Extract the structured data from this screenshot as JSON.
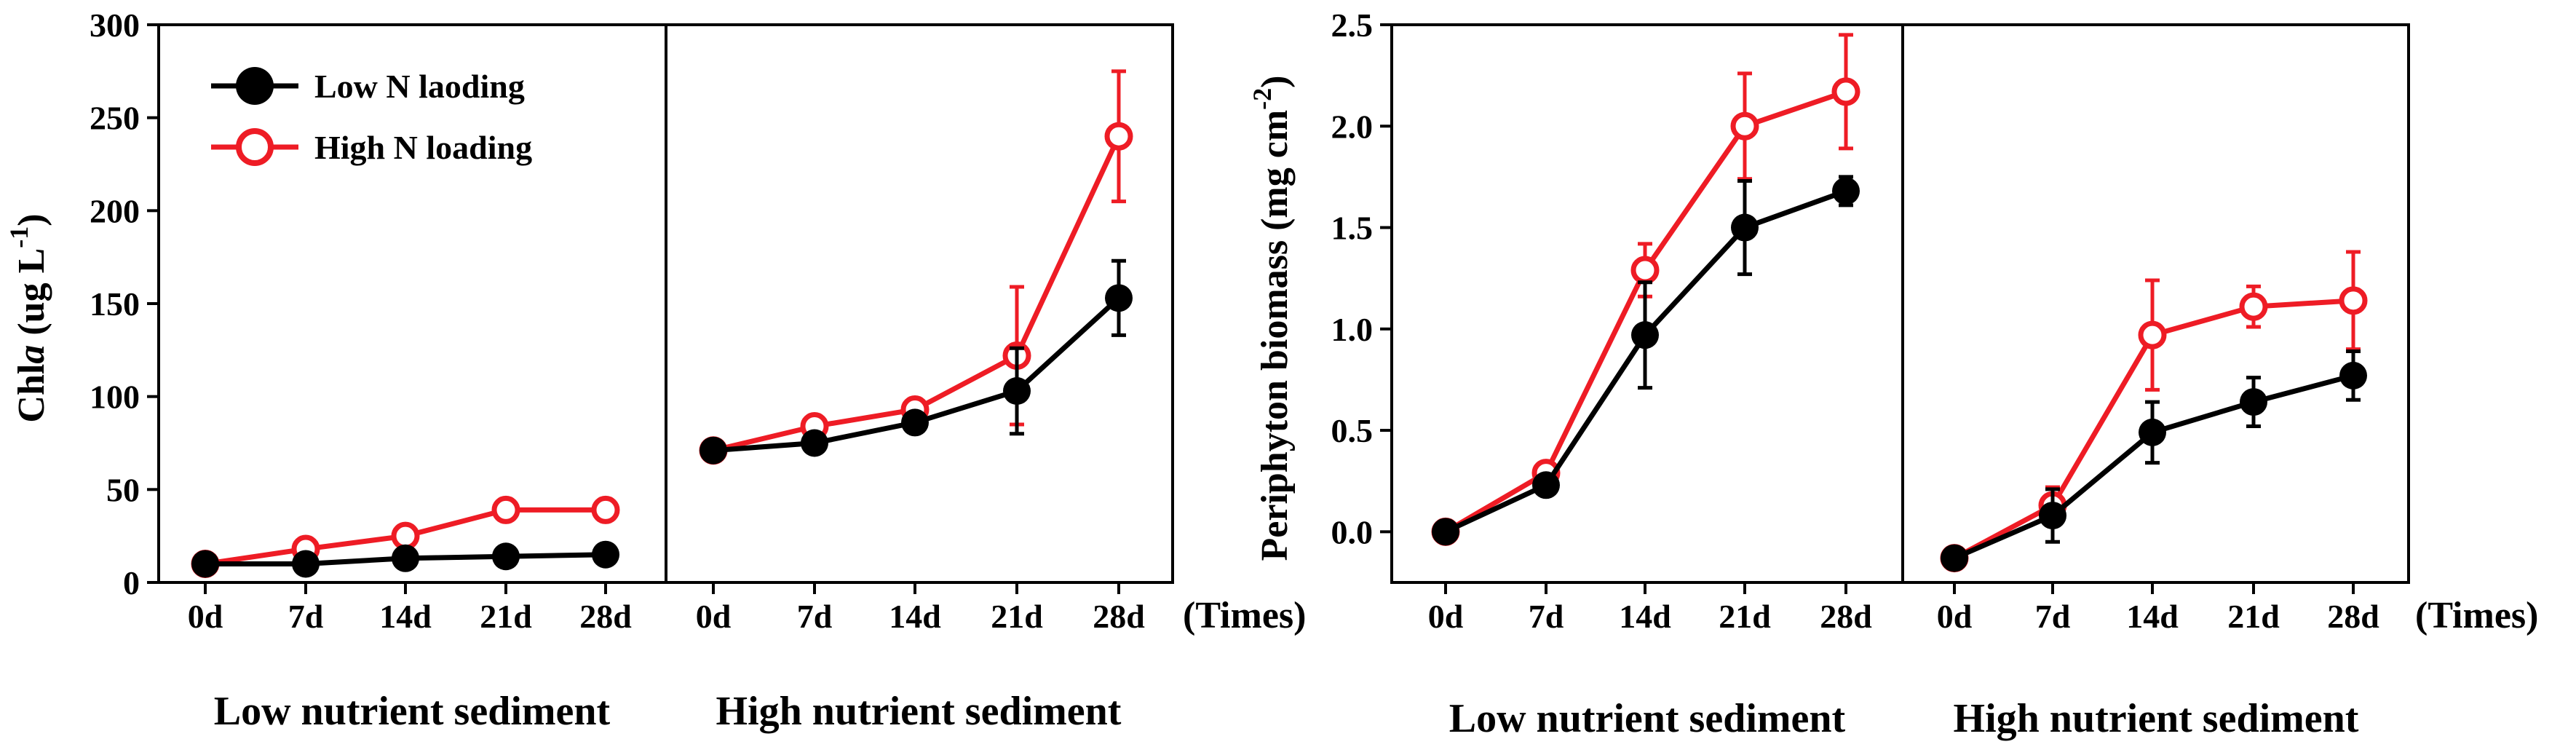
{
  "chart_data": [
    {
      "type": "line",
      "title": "",
      "ylabel": "Chla (ug L-1)",
      "ylabel_parts": {
        "main": "Chl",
        "italic": "a",
        "mid": " (ug L",
        "sup": "-1",
        "end": ")"
      },
      "ylim": [
        0,
        300
      ],
      "yticks": [
        "0",
        "50",
        "100",
        "150",
        "200",
        "250",
        "300"
      ],
      "x_unit_label": "(Times)",
      "panels": [
        {
          "group_label": "Low nutrient sediment",
          "categories": [
            "0d",
            "7d",
            "14d",
            "21d",
            "28d"
          ],
          "series": [
            {
              "name": "Low N laoding",
              "values": [
                10,
                10,
                13,
                14,
                15
              ],
              "errors": [
                0,
                0,
                0,
                0,
                0
              ],
              "color": "#000000",
              "marker": "filled-circle"
            },
            {
              "name": "High N loading",
              "values": [
                10,
                18,
                25,
                39,
                39
              ],
              "errors": [
                0,
                0,
                0,
                0,
                0
              ],
              "color": "#ee1c25",
              "marker": "open-circle"
            }
          ]
        },
        {
          "group_label": "High nutrient sediment",
          "categories": [
            "0d",
            "7d",
            "14d",
            "21d",
            "28d"
          ],
          "series": [
            {
              "name": "Low N laoding",
              "values": [
                71,
                75,
                86,
                103,
                153
              ],
              "errors": [
                0,
                4,
                3,
                23,
                20
              ],
              "color": "#000000",
              "marker": "filled-circle"
            },
            {
              "name": "High N loading",
              "values": [
                71,
                84,
                93,
                122,
                240
              ],
              "errors": [
                0,
                0,
                0,
                37,
                35
              ],
              "color": "#ee1c25",
              "marker": "open-circle"
            }
          ]
        }
      ],
      "legend": {
        "position": "top-left",
        "entries": [
          {
            "name": "Low N laoding",
            "color": "#000000",
            "marker": "filled-circle"
          },
          {
            "name": "High N loading",
            "color": "#ee1c25",
            "marker": "open-circle"
          }
        ]
      }
    },
    {
      "type": "line",
      "title": "",
      "ylabel": "Periphyton biomass (mg cm-2)",
      "ylabel_parts": {
        "main": "Periphyton biomass (mg cm",
        "sup": "-2",
        "end": ")"
      },
      "ylim": [
        -0.25,
        2.5
      ],
      "yticks": [
        "0.0",
        "0.5",
        "1.0",
        "1.5",
        "2.0",
        "2.5"
      ],
      "x_unit_label": "(Times)",
      "panels": [
        {
          "group_label": "Low nutrient sediment",
          "categories": [
            "0d",
            "7d",
            "14d",
            "21d",
            "28d"
          ],
          "series": [
            {
              "name": "Low N laoding",
              "values": [
                0.0,
                0.23,
                0.97,
                1.5,
                1.68
              ],
              "errors": [
                0,
                0.04,
                0.26,
                0.23,
                0.07
              ],
              "color": "#000000",
              "marker": "filled-circle"
            },
            {
              "name": "High N loading",
              "values": [
                0.0,
                0.29,
                1.29,
                2.0,
                2.17
              ],
              "errors": [
                0,
                0.03,
                0.13,
                0.26,
                0.28
              ],
              "color": "#ee1c25",
              "marker": "open-circle"
            }
          ]
        },
        {
          "group_label": "High nutrient sediment",
          "categories": [
            "0d",
            "7d",
            "14d",
            "21d",
            "28d"
          ],
          "series": [
            {
              "name": "Low N laoding",
              "values": [
                -0.13,
                0.08,
                0.49,
                0.64,
                0.77
              ],
              "errors": [
                0,
                0.13,
                0.15,
                0.12,
                0.12
              ],
              "color": "#000000",
              "marker": "filled-circle"
            },
            {
              "name": "High N loading",
              "values": [
                -0.13,
                0.13,
                0.97,
                1.11,
                1.14
              ],
              "errors": [
                0,
                0.09,
                0.27,
                0.1,
                0.24
              ],
              "color": "#ee1c25",
              "marker": "open-circle"
            }
          ]
        }
      ]
    }
  ]
}
